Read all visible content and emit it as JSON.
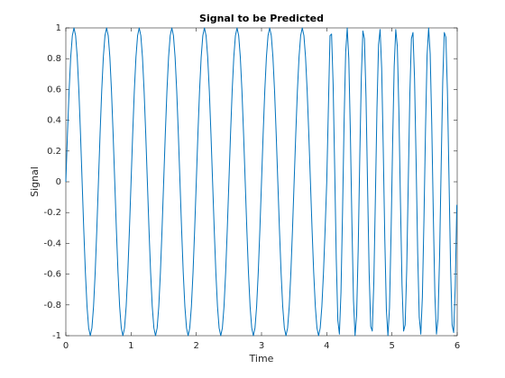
{
  "chart_data": {
    "type": "line",
    "title": "Signal to be Predicted",
    "x_label": "Time",
    "y_label": "Signal",
    "color": "#0072bd",
    "x": [
      0,
      0.025,
      0.05,
      0.075,
      0.1,
      0.125,
      0.15,
      0.175,
      0.2,
      0.225,
      0.25,
      0.275,
      0.3,
      0.325,
      0.35,
      0.375,
      0.4,
      0.425,
      0.45,
      0.475,
      0.5,
      0.525,
      0.55,
      0.575,
      0.6,
      0.625,
      0.65,
      0.675,
      0.7,
      0.725,
      0.75,
      0.775,
      0.8,
      0.825,
      0.85,
      0.875,
      0.9,
      0.925,
      0.95,
      0.975,
      1,
      1.025,
      1.05,
      1.075,
      1.1,
      1.125,
      1.15,
      1.175,
      1.2,
      1.225,
      1.25,
      1.275,
      1.3,
      1.325,
      1.35,
      1.375,
      1.4,
      1.425,
      1.45,
      1.475,
      1.5,
      1.525,
      1.55,
      1.575,
      1.6,
      1.625,
      1.65,
      1.675,
      1.7,
      1.725,
      1.75,
      1.775,
      1.8,
      1.825,
      1.85,
      1.875,
      1.9,
      1.925,
      1.95,
      1.975,
      2,
      2.025,
      2.05,
      2.075,
      2.1,
      2.125,
      2.15,
      2.175,
      2.2,
      2.225,
      2.25,
      2.275,
      2.3,
      2.325,
      2.35,
      2.375,
      2.4,
      2.425,
      2.45,
      2.475,
      2.5,
      2.525,
      2.55,
      2.575,
      2.6,
      2.625,
      2.65,
      2.675,
      2.7,
      2.725,
      2.75,
      2.775,
      2.8,
      2.825,
      2.85,
      2.875,
      2.9,
      2.925,
      2.95,
      2.975,
      3,
      3.025,
      3.05,
      3.075,
      3.1,
      3.125,
      3.15,
      3.175,
      3.2,
      3.225,
      3.25,
      3.275,
      3.3,
      3.325,
      3.35,
      3.375,
      3.4,
      3.425,
      3.45,
      3.475,
      3.5,
      3.525,
      3.55,
      3.575,
      3.6,
      3.625,
      3.65,
      3.675,
      3.7,
      3.725,
      3.75,
      3.775,
      3.8,
      3.825,
      3.85,
      3.875,
      3.9,
      3.925,
      3.95,
      3.975,
      4,
      4.05,
      4.074,
      4.098,
      4.122,
      4.146,
      4.17,
      4.194,
      4.218,
      4.242,
      4.266,
      4.29,
      4.314,
      4.338,
      4.362,
      4.386,
      4.41,
      4.434,
      4.458,
      4.482,
      4.506,
      4.53,
      4.554,
      4.578,
      4.602,
      4.626,
      4.65,
      4.674,
      4.698,
      4.722,
      4.746,
      4.77,
      4.794,
      4.818,
      4.842,
      4.866,
      4.89,
      4.914,
      4.938,
      4.962,
      4.986,
      5.01,
      5.034,
      5.058,
      5.082,
      5.106,
      5.13,
      5.154,
      5.178,
      5.202,
      5.226,
      5.25,
      5.274,
      5.298,
      5.322,
      5.346,
      5.37,
      5.394,
      5.418,
      5.442,
      5.466,
      5.49,
      5.514,
      5.538,
      5.562,
      5.586,
      5.61,
      5.634,
      5.658,
      5.682,
      5.706,
      5.73,
      5.754,
      5.778,
      5.802,
      5.826,
      5.85,
      5.874,
      5.898,
      5.922,
      5.946,
      5.97,
      5.994
    ],
    "values": [
      0,
      0.31,
      0.59,
      0.81,
      0.95,
      1,
      0.95,
      0.81,
      0.59,
      0.31,
      0,
      -0.31,
      -0.59,
      -0.81,
      -0.95,
      -1,
      -0.95,
      -0.81,
      -0.59,
      -0.31,
      0,
      0.31,
      0.59,
      0.81,
      0.95,
      1,
      0.95,
      0.81,
      0.59,
      0.31,
      0,
      -0.31,
      -0.59,
      -0.81,
      -0.95,
      -1,
      -0.95,
      -0.81,
      -0.59,
      -0.31,
      0,
      0.31,
      0.59,
      0.81,
      0.95,
      1,
      0.95,
      0.81,
      0.59,
      0.31,
      0,
      -0.31,
      -0.59,
      -0.81,
      -0.95,
      -1,
      -0.95,
      -0.81,
      -0.59,
      -0.31,
      0,
      0.31,
      0.59,
      0.81,
      0.95,
      1,
      0.95,
      0.81,
      0.59,
      0.31,
      0,
      -0.31,
      -0.59,
      -0.81,
      -0.95,
      -1,
      -0.95,
      -0.81,
      -0.59,
      -0.31,
      0,
      0.31,
      0.59,
      0.81,
      0.95,
      1,
      0.95,
      0.81,
      0.59,
      0.31,
      0,
      -0.31,
      -0.59,
      -0.81,
      -0.95,
      -1,
      -0.95,
      -0.81,
      -0.59,
      -0.31,
      0,
      0.31,
      0.59,
      0.81,
      0.95,
      1,
      0.95,
      0.81,
      0.59,
      0.31,
      0,
      -0.31,
      -0.59,
      -0.81,
      -0.95,
      -1,
      -0.95,
      -0.81,
      -0.59,
      -0.31,
      0,
      0.31,
      0.59,
      0.81,
      0.95,
      1,
      0.95,
      0.81,
      0.59,
      0.31,
      0,
      -0.31,
      -0.59,
      -0.81,
      -0.95,
      -1,
      -0.95,
      -0.81,
      -0.59,
      -0.31,
      0,
      0.31,
      0.59,
      0.81,
      0.95,
      1,
      0.95,
      0.81,
      0.59,
      0.31,
      0,
      -0.31,
      -0.59,
      -0.81,
      -0.95,
      -1,
      -0.95,
      -0.81,
      -0.59,
      -0.31,
      0,
      0.95,
      0.96,
      0.63,
      0.08,
      -0.5,
      -0.9,
      -0.99,
      -0.72,
      -0.2,
      0.39,
      0.84,
      1,
      0.8,
      0.32,
      -0.27,
      -0.77,
      -1,
      -0.87,
      -0.44,
      0.15,
      0.68,
      0.98,
      0.93,
      0.55,
      -0.03,
      -0.59,
      -0.94,
      -0.97,
      -0.65,
      -0.1,
      0.48,
      0.89,
      0.99,
      0.74,
      0.22,
      -0.37,
      -0.83,
      -1,
      -0.82,
      -0.34,
      0.25,
      0.75,
      0.99,
      0.88,
      0.46,
      -0.13,
      -0.67,
      -0.97,
      -0.93,
      -0.57,
      0,
      0.57,
      0.93,
      0.97,
      0.67,
      0.13,
      -0.46,
      -0.88,
      -0.99,
      -0.75,
      -0.25,
      0.34,
      0.82,
      1,
      0.83,
      0.37,
      -0.22,
      -0.74,
      -0.99,
      -0.89,
      -0.48,
      0.1,
      0.65,
      0.97,
      0.94,
      0.59,
      0.03,
      -0.55,
      -0.93,
      -0.98,
      -0.68,
      -0.15
    ],
    "xlim": [
      0,
      6
    ],
    "ylim": [
      -1,
      1
    ],
    "xticks": [
      0,
      1,
      2,
      3,
      4,
      5,
      6
    ],
    "yticks": [
      -1,
      -0.8,
      -0.6,
      -0.4,
      -0.2,
      0,
      0.2,
      0.4,
      0.6,
      0.8,
      1
    ],
    "grid": false
  }
}
